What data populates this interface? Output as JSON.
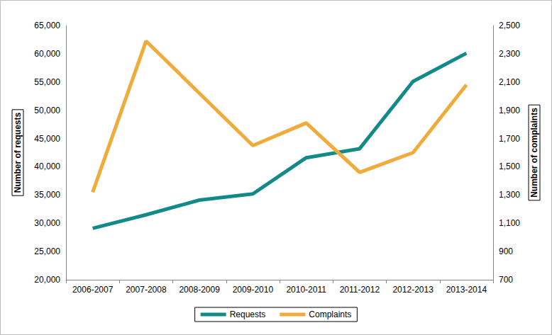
{
  "chart_data": {
    "type": "line",
    "categories": [
      "2006-2007",
      "2007-2008",
      "2008-2009",
      "2009-2010",
      "2010-2011",
      "2011-2012",
      "2012-2013",
      "2013-2014"
    ],
    "series": [
      {
        "name": "Requests",
        "color": "#138a8a",
        "values": [
          29100,
          31500,
          34100,
          35200,
          41600,
          43200,
          55100,
          60100
        ]
      },
      {
        "name": "Complaints",
        "color": "#f0ab3a",
        "axis": "y2",
        "values": [
          1320,
          2390,
          2020,
          1650,
          1810,
          1460,
          1600,
          2080
        ]
      }
    ],
    "ylabel": "Number of requests",
    "y2label": "Number of complaints",
    "ylim": [
      20000,
      65000
    ],
    "yticks": [
      {
        "value": 20000,
        "label": "20,000"
      },
      {
        "value": 25000,
        "label": "25,000"
      },
      {
        "value": 30000,
        "label": "30,000"
      },
      {
        "value": 35000,
        "label": "35,000"
      },
      {
        "value": 40000,
        "label": "40,000"
      },
      {
        "value": 45000,
        "label": "45,000"
      },
      {
        "value": 50000,
        "label": "50,000"
      },
      {
        "value": 55000,
        "label": "55,000"
      },
      {
        "value": 60000,
        "label": "60,000"
      },
      {
        "value": 65000,
        "label": "65,000"
      }
    ],
    "y2lim": [
      700,
      2500
    ],
    "y2ticks": [
      700,
      900,
      {
        "value": 1100,
        "label": "1,100"
      },
      {
        "value": 1300,
        "label": "1,300"
      },
      {
        "value": 1500,
        "label": "1,500"
      },
      {
        "value": 1700,
        "label": "1,700"
      },
      {
        "value": 1900,
        "label": "1,900"
      },
      {
        "value": 2100,
        "label": "2,100"
      },
      {
        "value": 2300,
        "label": "2,300"
      },
      {
        "value": 2500,
        "label": "2,500"
      }
    ],
    "grid": false,
    "legend": "bottom"
  }
}
